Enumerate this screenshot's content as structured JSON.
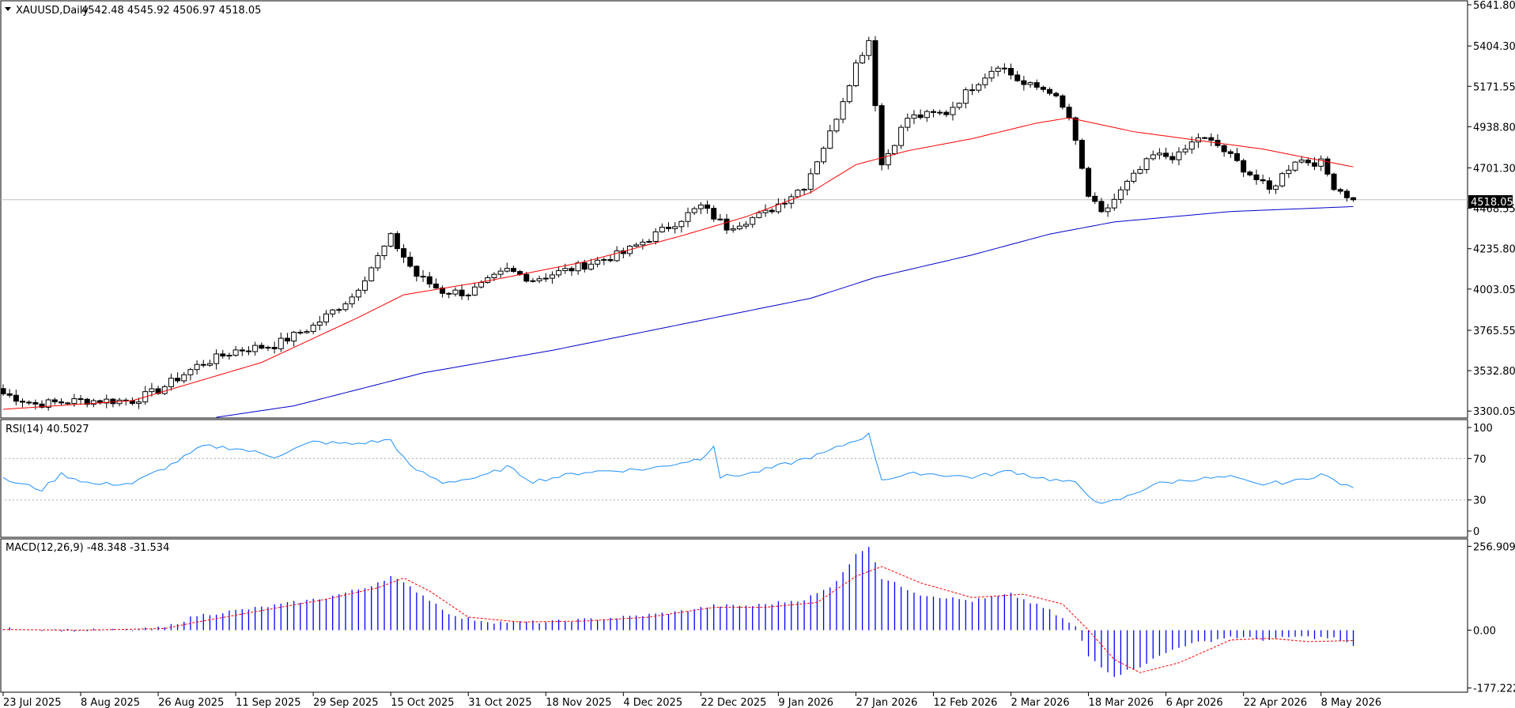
{
  "header": {
    "symbol_label": "XAUUSD,Daily",
    "ohlc_label": "4542.48 4545.92 4506.97 4518.05",
    "current_price": "4518.05",
    "rsi_label": "RSI(14) 40.5027",
    "macd_label": "MACD(12,26,9) -48.348 -31.534"
  },
  "colors": {
    "background": "#ffffff",
    "candle_up": "#ffffff",
    "candle_down": "#000000",
    "ma_fast": "#ff0000",
    "ma_slow": "#0000cc",
    "rsi_line": "#1e90ff",
    "macd_hist": "#0000ff",
    "macd_signal": "#ff0000",
    "price_line": "#c0c0c0"
  },
  "chart_data": [
    {
      "type": "candlestick",
      "title": "XAUUSD,Daily",
      "y_ticks": [
        5641.8,
        5404.3,
        5171.55,
        4938.8,
        4701.3,
        4468.55,
        4235.8,
        4003.05,
        3765.55,
        3532.8,
        3300.05
      ],
      "y_tick_labels": [
        "5641.80",
        "5404.30",
        "5171.55",
        "4938.80",
        "4701.30",
        "4468.55",
        "4235.80",
        "4003.05",
        "3765.55",
        "3532.80",
        "3300.05"
      ],
      "ylim": [
        3260,
        5660
      ],
      "last_close": 4518.05,
      "x_ticks": [
        {
          "label": "23 Jul 2025",
          "index": 0
        },
        {
          "label": "8 Aug 2025",
          "index": 12
        },
        {
          "label": "26 Aug 2025",
          "index": 24
        },
        {
          "label": "11 Sep 2025",
          "index": 36
        },
        {
          "label": "29 Sep 2025",
          "index": 48
        },
        {
          "label": "15 Oct 2025",
          "index": 60
        },
        {
          "label": "31 Oct 2025",
          "index": 72
        },
        {
          "label": "18 Nov 2025",
          "index": 84
        },
        {
          "label": "4 Dec 2025",
          "index": 96
        },
        {
          "label": "22 Dec 2025",
          "index": 108
        },
        {
          "label": "9 Jan 2026",
          "index": 120
        },
        {
          "label": "27 Jan 2026",
          "index": 132
        },
        {
          "label": "12 Feb 2026",
          "index": 144
        },
        {
          "label": "2 Mar 2026",
          "index": 156
        },
        {
          "label": "18 Mar 2026",
          "index": 168
        },
        {
          "label": "6 Apr 2026",
          "index": 180
        },
        {
          "label": "22 Apr 2026",
          "index": 192
        },
        {
          "label": "8 May 2026",
          "index": 204
        }
      ],
      "key_closes": [
        [
          0,
          3400
        ],
        [
          5,
          3340
        ],
        [
          12,
          3360
        ],
        [
          20,
          3360
        ],
        [
          24,
          3420
        ],
        [
          30,
          3560
        ],
        [
          36,
          3650
        ],
        [
          42,
          3680
        ],
        [
          48,
          3790
        ],
        [
          54,
          3960
        ],
        [
          60,
          4300
        ],
        [
          64,
          4080
        ],
        [
          68,
          3990
        ],
        [
          72,
          3980
        ],
        [
          78,
          4110
        ],
        [
          82,
          4060
        ],
        [
          88,
          4120
        ],
        [
          96,
          4210
        ],
        [
          102,
          4340
        ],
        [
          108,
          4480
        ],
        [
          112,
          4360
        ],
        [
          118,
          4440
        ],
        [
          124,
          4600
        ],
        [
          128,
          4900
        ],
        [
          132,
          5300
        ],
        [
          134,
          5440
        ],
        [
          136,
          4720
        ],
        [
          140,
          4990
        ],
        [
          146,
          5020
        ],
        [
          150,
          5170
        ],
        [
          154,
          5300
        ],
        [
          158,
          5180
        ],
        [
          162,
          5150
        ],
        [
          165,
          4990
        ],
        [
          168,
          4540
        ],
        [
          170,
          4430
        ],
        [
          174,
          4610
        ],
        [
          178,
          4770
        ],
        [
          182,
          4770
        ],
        [
          185,
          4880
        ],
        [
          188,
          4830
        ],
        [
          192,
          4700
        ],
        [
          196,
          4570
        ],
        [
          200,
          4750
        ],
        [
          204,
          4730
        ],
        [
          206,
          4600
        ],
        [
          209,
          4518.05
        ]
      ],
      "ma_fast_points": [
        [
          0,
          3310
        ],
        [
          20,
          3360
        ],
        [
          40,
          3580
        ],
        [
          55,
          3840
        ],
        [
          62,
          3970
        ],
        [
          75,
          4050
        ],
        [
          90,
          4160
        ],
        [
          105,
          4310
        ],
        [
          115,
          4420
        ],
        [
          125,
          4560
        ],
        [
          132,
          4720
        ],
        [
          140,
          4800
        ],
        [
          150,
          4870
        ],
        [
          160,
          4960
        ],
        [
          165,
          4990
        ],
        [
          175,
          4910
        ],
        [
          195,
          4810
        ],
        [
          210,
          4700
        ]
      ],
      "ma_slow_points": [
        [
          0,
          3210
        ],
        [
          25,
          3220
        ],
        [
          45,
          3330
        ],
        [
          65,
          3520
        ],
        [
          85,
          3650
        ],
        [
          105,
          3800
        ],
        [
          125,
          3950
        ],
        [
          135,
          4070
        ],
        [
          150,
          4200
        ],
        [
          162,
          4320
        ],
        [
          172,
          4390
        ],
        [
          190,
          4450
        ],
        [
          210,
          4480
        ]
      ],
      "series": [
        {
          "name": "XAUUSD,Daily"
        }
      ]
    },
    {
      "type": "line",
      "title": "RSI(14) 40.5027",
      "ylim": [
        0,
        100
      ],
      "y_ticks": [
        100,
        70,
        30,
        0
      ],
      "y_tick_labels": [
        "100",
        "70",
        "30",
        "0"
      ],
      "levels": [
        70,
        30
      ],
      "key_points": [
        [
          0,
          50
        ],
        [
          6,
          40
        ],
        [
          9,
          55
        ],
        [
          14,
          45
        ],
        [
          20,
          46
        ],
        [
          26,
          64
        ],
        [
          31,
          82
        ],
        [
          36,
          80
        ],
        [
          42,
          72
        ],
        [
          48,
          86
        ],
        [
          54,
          84
        ],
        [
          60,
          88
        ],
        [
          63,
          62
        ],
        [
          68,
          47
        ],
        [
          74,
          52
        ],
        [
          78,
          62
        ],
        [
          82,
          48
        ],
        [
          90,
          57
        ],
        [
          100,
          60
        ],
        [
          108,
          70
        ],
        [
          110,
          83
        ],
        [
          111,
          52
        ],
        [
          116,
          56
        ],
        [
          122,
          66
        ],
        [
          127,
          75
        ],
        [
          132,
          88
        ],
        [
          134,
          93
        ],
        [
          136,
          50
        ],
        [
          142,
          56
        ],
        [
          150,
          52
        ],
        [
          156,
          58
        ],
        [
          160,
          52
        ],
        [
          166,
          46
        ],
        [
          170,
          25
        ],
        [
          174,
          33
        ],
        [
          178,
          45
        ],
        [
          184,
          50
        ],
        [
          190,
          52
        ],
        [
          194,
          45
        ],
        [
          200,
          48
        ],
        [
          204,
          55
        ],
        [
          208,
          43
        ],
        [
          210,
          40.5
        ]
      ]
    },
    {
      "type": "bar",
      "title": "MACD(12,26,9) -48.348 -31.534",
      "ylim": [
        -190,
        270
      ],
      "y_ticks": [
        256.909,
        0.0,
        -177.222
      ],
      "y_tick_labels": [
        "256.909",
        "0.00",
        "-177.222"
      ],
      "histogram_key_points": [
        [
          0,
          5
        ],
        [
          10,
          0
        ],
        [
          20,
          0
        ],
        [
          25,
          8
        ],
        [
          30,
          45
        ],
        [
          40,
          70
        ],
        [
          50,
          100
        ],
        [
          56,
          130
        ],
        [
          60,
          165
        ],
        [
          64,
          120
        ],
        [
          70,
          40
        ],
        [
          76,
          25
        ],
        [
          84,
          25
        ],
        [
          96,
          40
        ],
        [
          104,
          55
        ],
        [
          110,
          75
        ],
        [
          116,
          75
        ],
        [
          124,
          95
        ],
        [
          128,
          130
        ],
        [
          132,
          230
        ],
        [
          134,
          260
        ],
        [
          136,
          160
        ],
        [
          142,
          110
        ],
        [
          150,
          90
        ],
        [
          156,
          110
        ],
        [
          162,
          60
        ],
        [
          166,
          10
        ],
        [
          168,
          -80
        ],
        [
          172,
          -140
        ],
        [
          176,
          -110
        ],
        [
          182,
          -50
        ],
        [
          190,
          -20
        ],
        [
          196,
          -30
        ],
        [
          200,
          -20
        ],
        [
          206,
          -25
        ],
        [
          209,
          -48.348
        ]
      ],
      "signal_key_points": [
        [
          0,
          2
        ],
        [
          12,
          0
        ],
        [
          25,
          5
        ],
        [
          30,
          25
        ],
        [
          40,
          60
        ],
        [
          50,
          95
        ],
        [
          58,
          130
        ],
        [
          62,
          160
        ],
        [
          66,
          120
        ],
        [
          72,
          40
        ],
        [
          80,
          25
        ],
        [
          90,
          28
        ],
        [
          100,
          40
        ],
        [
          110,
          70
        ],
        [
          118,
          70
        ],
        [
          126,
          85
        ],
        [
          132,
          165
        ],
        [
          136,
          195
        ],
        [
          142,
          145
        ],
        [
          150,
          100
        ],
        [
          158,
          110
        ],
        [
          164,
          80
        ],
        [
          168,
          0
        ],
        [
          172,
          -90
        ],
        [
          176,
          -130
        ],
        [
          182,
          -100
        ],
        [
          190,
          -30
        ],
        [
          196,
          -25
        ],
        [
          202,
          -35
        ],
        [
          209,
          -31.534
        ]
      ]
    }
  ]
}
